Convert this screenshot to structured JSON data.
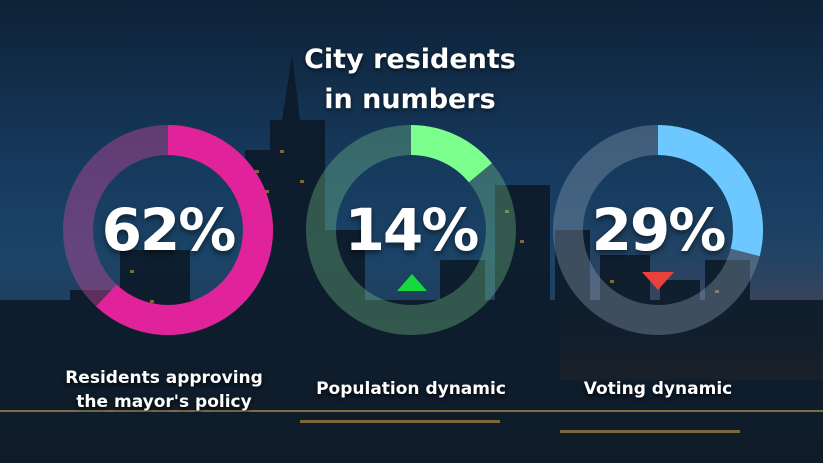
{
  "title": {
    "line1": "City residents",
    "line2": "in numbers"
  },
  "metrics": [
    {
      "value": "62%",
      "percent": 62,
      "color": "#e0239a",
      "track": "rgba(190,70,150,0.45)",
      "label_lines": [
        "Residents approving",
        "the mayor's policy"
      ],
      "trend": ""
    },
    {
      "value": "14%",
      "percent": 14,
      "color": "#7dff8e",
      "track": "rgba(120,200,140,0.35)",
      "label_lines": [
        "Population dynamic"
      ],
      "trend": "up",
      "trend_color": "#17d93c"
    },
    {
      "value": "29%",
      "percent": 29,
      "color": "#6cc8ff",
      "track": "rgba(150,170,190,0.35)",
      "label_lines": [
        "Voting dynamic"
      ],
      "trend": "down",
      "trend_color": "#e8413e"
    }
  ]
}
